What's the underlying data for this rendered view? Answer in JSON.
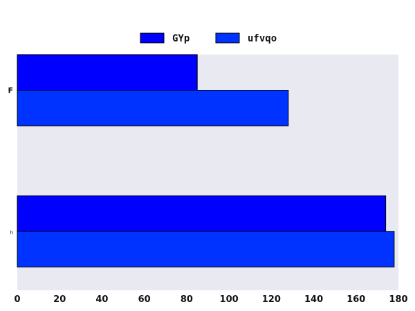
{
  "chart_data": {
    "type": "bar",
    "orientation": "horizontal",
    "categories": [
      "F",
      "h"
    ],
    "series": [
      {
        "name": "GYp",
        "values": [
          85,
          174
        ],
        "color": "#0000ff"
      },
      {
        "name": "ufvqo",
        "values": [
          128,
          178
        ],
        "color": "#0033ff"
      }
    ],
    "xlim": [
      0,
      180
    ],
    "xticks": [
      0,
      20,
      40,
      60,
      80,
      100,
      120,
      140,
      160,
      180
    ],
    "title": "",
    "xlabel": "",
    "ylabel": "",
    "legend": "top-center",
    "grid": false,
    "plot_background": "#e9e9f2"
  }
}
